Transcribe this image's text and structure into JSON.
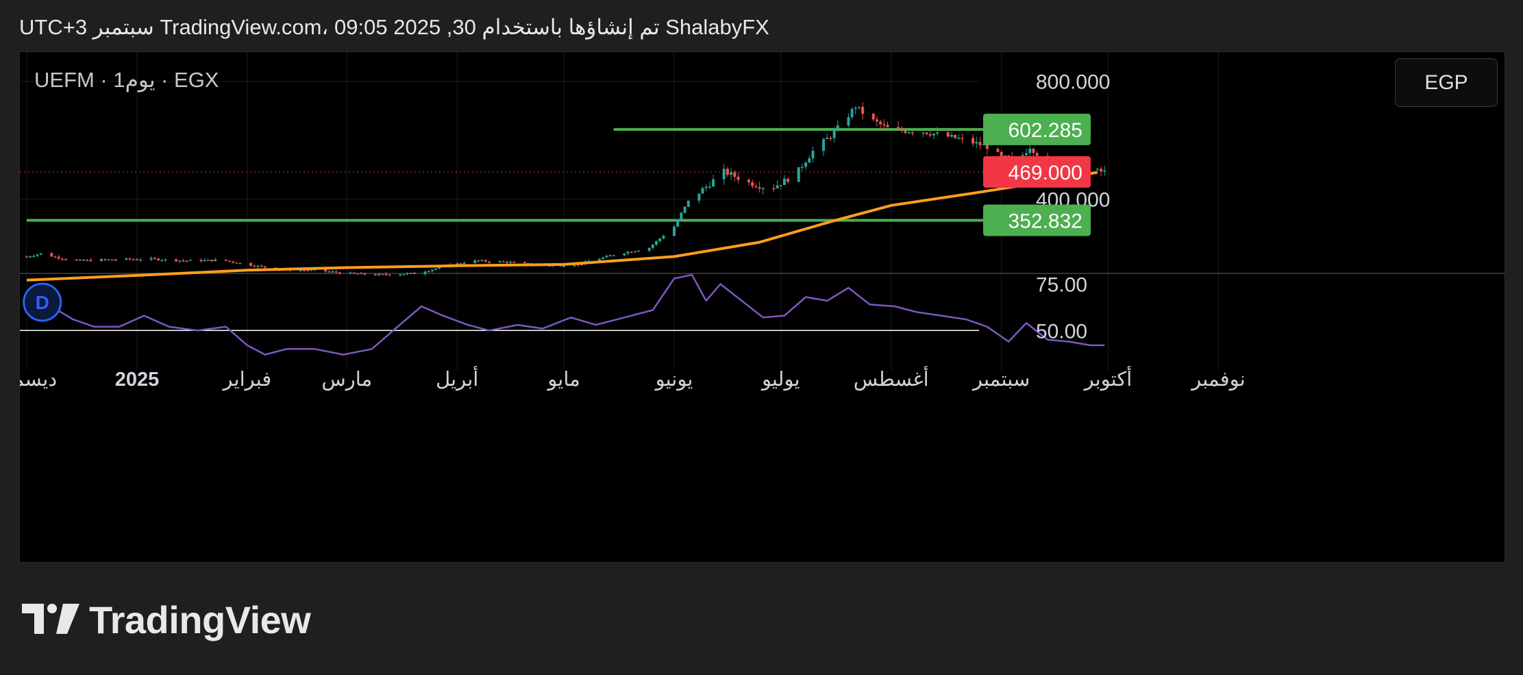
{
  "header": {
    "attribution": "ShalabyFX تم إنشاؤها باستخدام TradingView.com، 09:05 2025 ,30 سبتمبر UTC+3"
  },
  "symbol_label": "UEFM · 1يوم · EGX",
  "currency_button": "EGP",
  "footer": {
    "brand": "TradingView"
  },
  "colors": {
    "up": "#26a69a",
    "down": "#ef5350",
    "ma": "#ff9f1c",
    "level_line": "#4caf50",
    "rsi": "#7e57c2",
    "price_badge": "#f23645",
    "background": "#000000"
  },
  "icons": [
    "dividend-d-icon",
    "tradingview-logo-icon"
  ],
  "chart_data": [
    {
      "type": "candlestick",
      "title": "UEFM · 1يوم · EGX",
      "grid": true,
      "y_scale": "log",
      "ylim": [
        205,
        950
      ],
      "x_range": [
        "2024-12-01",
        "2025-11-30"
      ],
      "y_ticks": [
        {
          "value": 800,
          "label": "800.000"
        },
        {
          "value": 400,
          "label": "400.000"
        }
      ],
      "x_ticks": [
        {
          "date": "2024-12-01",
          "label": "ديسمبر"
        },
        {
          "date": "2025-01-01",
          "label": "2025"
        },
        {
          "date": "2025-02-01",
          "label": "فبراير"
        },
        {
          "date": "2025-03-01",
          "label": "مارس"
        },
        {
          "date": "2025-04-01",
          "label": "أبريل"
        },
        {
          "date": "2025-05-01",
          "label": "مايو"
        },
        {
          "date": "2025-06-01",
          "label": "يونيو"
        },
        {
          "date": "2025-07-01",
          "label": "يوليو"
        },
        {
          "date": "2025-08-01",
          "label": "أغسطس"
        },
        {
          "date": "2025-09-01",
          "label": "سبتمبر"
        },
        {
          "date": "2025-10-01",
          "label": "أكتوبر"
        },
        {
          "date": "2025-11-01",
          "label": "نوفمبر"
        }
      ],
      "price_points": [
        [
          "2024-12-01",
          285
        ],
        [
          "2024-12-05",
          290
        ],
        [
          "2024-12-10",
          283
        ],
        [
          "2024-12-15",
          278
        ],
        [
          "2024-12-20",
          279
        ],
        [
          "2024-12-25",
          280
        ],
        [
          "2025-01-05",
          281
        ],
        [
          "2025-01-15",
          278
        ],
        [
          "2025-01-25",
          279
        ],
        [
          "2025-02-01",
          272
        ],
        [
          "2025-02-10",
          264
        ],
        [
          "2025-02-20",
          263
        ],
        [
          "2025-03-01",
          258
        ],
        [
          "2025-03-10",
          256
        ],
        [
          "2025-03-20",
          258
        ],
        [
          "2025-03-28",
          268
        ],
        [
          "2025-04-05",
          278
        ],
        [
          "2025-04-15",
          276
        ],
        [
          "2025-04-25",
          270
        ],
        [
          "2025-05-05",
          272
        ],
        [
          "2025-05-15",
          288
        ],
        [
          "2025-05-25",
          300
        ],
        [
          "2025-06-01",
          340
        ],
        [
          "2025-06-05",
          395
        ],
        [
          "2025-06-10",
          430
        ],
        [
          "2025-06-15",
          470
        ],
        [
          "2025-06-22",
          440
        ],
        [
          "2025-06-28",
          425
        ],
        [
          "2025-07-05",
          460
        ],
        [
          "2025-07-10",
          530
        ],
        [
          "2025-07-15",
          580
        ],
        [
          "2025-07-18",
          620
        ],
        [
          "2025-07-22",
          690
        ],
        [
          "2025-07-26",
          640
        ],
        [
          "2025-08-01",
          600
        ],
        [
          "2025-08-10",
          595
        ],
        [
          "2025-08-20",
          570
        ],
        [
          "2025-08-28",
          545
        ],
        [
          "2025-09-01",
          510
        ],
        [
          "2025-09-06",
          505
        ],
        [
          "2025-09-09",
          545
        ],
        [
          "2025-09-13",
          500
        ],
        [
          "2025-09-18",
          485
        ],
        [
          "2025-09-24",
          475
        ],
        [
          "2025-09-30",
          469
        ]
      ],
      "overlays": [
        {
          "type": "moving_average",
          "points": [
            [
              "2024-12-01",
              248
            ],
            [
              "2025-01-01",
              255
            ],
            [
              "2025-02-01",
              263
            ],
            [
              "2025-03-01",
              267
            ],
            [
              "2025-04-01",
              270
            ],
            [
              "2025-05-01",
              272
            ],
            [
              "2025-06-01",
              285
            ],
            [
              "2025-06-25",
              310
            ],
            [
              "2025-07-15",
              350
            ],
            [
              "2025-08-01",
              385
            ],
            [
              "2025-08-25",
              415
            ],
            [
              "2025-09-15",
              445
            ],
            [
              "2025-09-28",
              468
            ]
          ]
        },
        {
          "type": "horizontal_level",
          "value": 602.285,
          "start": "2025-05-15"
        },
        {
          "type": "horizontal_level",
          "value": 352.832,
          "start": "2024-12-01"
        },
        {
          "type": "last_price_line",
          "value": 469.0
        }
      ],
      "axis_labels": [
        {
          "value": 602.285,
          "label": "602.285"
        },
        {
          "value": 469.0,
          "label": "469.000"
        },
        {
          "value": 352.832,
          "label": "352.832"
        }
      ],
      "markers": [
        {
          "type": "dividend",
          "date": "2024-12-15",
          "label": "D"
        }
      ]
    },
    {
      "type": "line",
      "title": "",
      "ylim": [
        32,
        80
      ],
      "y_ticks": [
        {
          "value": 75,
          "label": "75.00"
        },
        {
          "value": 50,
          "label": "50.00"
        }
      ],
      "reference_line": 50,
      "series": [
        {
          "points": [
            [
              "2024-12-01",
              65
            ],
            [
              "2024-12-07",
              64
            ],
            [
              "2024-12-14",
              56
            ],
            [
              "2024-12-20",
              52
            ],
            [
              "2024-12-27",
              52
            ],
            [
              "2025-01-03",
              58
            ],
            [
              "2025-01-10",
              52
            ],
            [
              "2025-01-18",
              50
            ],
            [
              "2025-01-26",
              52
            ],
            [
              "2025-02-01",
              42
            ],
            [
              "2025-02-06",
              37
            ],
            [
              "2025-02-12",
              40
            ],
            [
              "2025-02-20",
              40
            ],
            [
              "2025-02-28",
              37
            ],
            [
              "2025-03-08",
              40
            ],
            [
              "2025-03-14",
              50
            ],
            [
              "2025-03-22",
              63
            ],
            [
              "2025-03-28",
              58
            ],
            [
              "2025-04-04",
              53
            ],
            [
              "2025-04-10",
              50
            ],
            [
              "2025-04-18",
              53
            ],
            [
              "2025-04-25",
              51
            ],
            [
              "2025-05-03",
              57
            ],
            [
              "2025-05-10",
              53
            ],
            [
              "2025-05-18",
              57
            ],
            [
              "2025-05-26",
              61
            ],
            [
              "2025-06-01",
              78
            ],
            [
              "2025-06-06",
              80
            ],
            [
              "2025-06-10",
              66
            ],
            [
              "2025-06-14",
              75
            ],
            [
              "2025-06-20",
              66
            ],
            [
              "2025-06-26",
              57
            ],
            [
              "2025-07-02",
              58
            ],
            [
              "2025-07-08",
              68
            ],
            [
              "2025-07-14",
              66
            ],
            [
              "2025-07-20",
              73
            ],
            [
              "2025-07-26",
              64
            ],
            [
              "2025-08-02",
              63
            ],
            [
              "2025-08-08",
              60
            ],
            [
              "2025-08-15",
              58
            ],
            [
              "2025-08-22",
              56
            ],
            [
              "2025-08-28",
              52
            ],
            [
              "2025-09-03",
              44
            ],
            [
              "2025-09-08",
              54
            ],
            [
              "2025-09-14",
              45
            ],
            [
              "2025-09-20",
              44
            ],
            [
              "2025-09-26",
              42
            ],
            [
              "2025-09-30",
              42
            ]
          ]
        }
      ]
    }
  ]
}
